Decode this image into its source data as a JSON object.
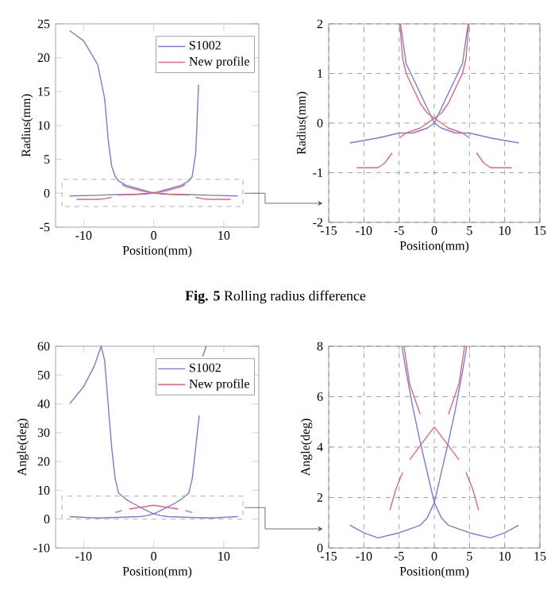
{
  "chart_data": [
    {
      "type": "line",
      "xlabel": "Position(mm)",
      "ylabel": "Radius(mm)",
      "xlim": [
        -14,
        15
      ],
      "ylim": [
        -5,
        25
      ],
      "xticks": [
        -10,
        0,
        10
      ],
      "yticks": [
        -5,
        0,
        5,
        10,
        15,
        20,
        25
      ],
      "legend": "top right",
      "annotations": [
        "**Fig. 5** Rolling radius difference"
      ],
      "series": [
        {
          "name": "S1002",
          "color": "#7b7bd6",
          "x": [
            -12,
            -10,
            -8,
            -7,
            -6.5,
            -6,
            -5.5,
            -5,
            -4,
            -3,
            -2,
            -1,
            0,
            1,
            3,
            5,
            8,
            12
          ],
          "values": [
            24,
            22.5,
            19,
            14,
            8,
            4,
            2.5,
            1.8,
            1.2,
            0.9,
            0.6,
            0.3,
            0,
            -0.1,
            -0.2,
            -0.2,
            -0.3,
            -0.4
          ]
        },
        {
          "color": "#7b7bd6",
          "x": [
            -12,
            -8,
            -5,
            -3,
            -1,
            0,
            1,
            2,
            3,
            4,
            5,
            5.5,
            6,
            6.4
          ],
          "values": [
            -0.4,
            -0.3,
            -0.2,
            -0.2,
            -0.1,
            0,
            0.3,
            0.6,
            0.9,
            1.2,
            1.8,
            2.5,
            6,
            16
          ]
        },
        {
          "name": "New profile",
          "color": "#e0687a",
          "x": [
            -4.5,
            -4,
            -3,
            -2,
            -1,
            0,
            2,
            4,
            5,
            5.5,
            6,
            7,
            8,
            11
          ],
          "values": [
            1.3,
            1.0,
            0.7,
            0.4,
            0.2,
            0.1,
            -0.1,
            -0.2,
            -0.3,
            null,
            -0.6,
            -0.8,
            -0.9,
            -0.9
          ]
        },
        {
          "color": "#e0687a",
          "x": [
            -11,
            -8,
            -7,
            -6,
            -5.5,
            -5,
            -4,
            -2,
            0,
            1,
            2,
            3,
            4,
            4.5
          ],
          "values": [
            -0.9,
            -0.9,
            -0.8,
            -0.6,
            null,
            -0.3,
            -0.2,
            -0.1,
            0.1,
            0.2,
            0.4,
            0.7,
            1.0,
            1.3
          ]
        }
      ]
    },
    {
      "type": "line",
      "xlabel": "Position(mm)",
      "ylabel": "Radius(mm)",
      "xlim": [
        -15,
        15
      ],
      "ylim": [
        -2,
        2
      ],
      "xticks": [
        -15,
        -10,
        -5,
        0,
        5,
        10,
        15
      ],
      "yticks": [
        -2,
        -1,
        0,
        1,
        2
      ],
      "grid": true,
      "series": [
        {
          "color": "#7b7bd6",
          "x": [
            -4.8,
            -4,
            -3,
            -2,
            -1,
            0,
            1,
            3,
            5,
            8,
            12
          ],
          "values": [
            2,
            1.2,
            0.9,
            0.6,
            0.3,
            0,
            -0.1,
            -0.2,
            -0.2,
            -0.3,
            -0.4
          ]
        },
        {
          "color": "#7b7bd6",
          "x": [
            -12,
            -8,
            -5,
            -3,
            -1,
            0,
            1,
            2,
            3,
            4,
            4.8
          ],
          "values": [
            -0.4,
            -0.3,
            -0.2,
            -0.2,
            -0.1,
            0,
            0.3,
            0.6,
            0.9,
            1.2,
            2
          ]
        },
        {
          "color": "#e0687a",
          "x": [
            -4.9,
            -4.5,
            -4,
            -3,
            -2,
            -1,
            0,
            2,
            4,
            5,
            5.5,
            6,
            7,
            8,
            11
          ],
          "values": [
            2,
            1.3,
            1.0,
            0.7,
            0.4,
            0.2,
            0.1,
            -0.1,
            -0.2,
            -0.3,
            null,
            -0.6,
            -0.8,
            -0.9,
            -0.9
          ]
        },
        {
          "color": "#e0687a",
          "x": [
            -11,
            -8,
            -7,
            -6,
            -5.5,
            -5,
            -4,
            -2,
            0,
            1,
            2,
            3,
            4,
            4.5,
            4.9
          ],
          "values": [
            -0.9,
            -0.9,
            -0.8,
            -0.6,
            null,
            -0.3,
            -0.2,
            -0.1,
            0.1,
            0.2,
            0.4,
            0.7,
            1.0,
            1.3,
            2
          ]
        }
      ]
    },
    {
      "type": "line",
      "xlabel": "Position(mm)",
      "ylabel": "Angle(deg)",
      "xlim": [
        -14,
        15
      ],
      "ylim": [
        -10,
        60
      ],
      "xticks": [
        -10,
        0,
        10
      ],
      "yticks": [
        -10,
        0,
        10,
        20,
        30,
        40,
        50,
        60
      ],
      "legend": "top right",
      "series": [
        {
          "name": "S1002",
          "color": "#7b7bd6",
          "x": [
            -12,
            -10,
            -8.5,
            -7.5,
            -7,
            -6.5,
            -6,
            -5.5,
            -5,
            -4,
            -3,
            -2,
            -1,
            0,
            1,
            2,
            3,
            5,
            8,
            10,
            12
          ],
          "values": [
            40,
            46,
            53,
            60,
            55,
            40,
            25,
            14,
            9,
            7,
            5.5,
            4.2,
            3,
            1.8,
            1.2,
            0.9,
            0.8,
            0.6,
            0.4,
            0.6,
            0.9
          ]
        },
        {
          "color": "#7b7bd6",
          "x": [
            -12,
            -10,
            -8,
            -5,
            -3,
            -2,
            -1,
            0,
            1,
            2,
            3,
            4,
            5,
            5.5,
            6,
            6.5,
            6.8,
            7,
            7.5
          ],
          "values": [
            0.9,
            0.6,
            0.4,
            0.6,
            0.8,
            0.9,
            1.2,
            1.8,
            3,
            4.2,
            5.5,
            7,
            9,
            14,
            25,
            36,
            null,
            56.5,
            60
          ]
        },
        {
          "name": "New profile",
          "color": "#e0687a",
          "x": [
            -5.5,
            -4.5,
            -4,
            -3.5,
            0,
            3.5,
            4,
            4.5,
            5.5
          ],
          "values": [
            2.3,
            3,
            null,
            3.5,
            4.8,
            3.5,
            null,
            3,
            2.3
          ]
        }
      ]
    },
    {
      "type": "line",
      "xlabel": "Position(mm)",
      "ylabel": "Angle(deg)",
      "xlim": [
        -15,
        15
      ],
      "ylim": [
        0,
        8
      ],
      "xticks": [
        -15,
        -10,
        -5,
        0,
        5,
        10,
        15
      ],
      "yticks": [
        0,
        2,
        4,
        6,
        8
      ],
      "grid": true,
      "series": [
        {
          "color": "#7b7bd6",
          "x": [
            -4.6,
            -4,
            -3,
            -2,
            -1,
            0,
            1,
            2,
            3,
            5,
            8,
            10,
            12
          ],
          "values": [
            8,
            7,
            5.5,
            4.2,
            3,
            1.8,
            1.2,
            0.9,
            0.8,
            0.6,
            0.4,
            0.6,
            0.9
          ]
        },
        {
          "color": "#7b7bd6",
          "x": [
            -12,
            -10,
            -8,
            -5,
            -3,
            -2,
            -1,
            0,
            1,
            2,
            3,
            4,
            4.6
          ],
          "values": [
            0.9,
            0.6,
            0.4,
            0.6,
            0.8,
            0.9,
            1.2,
            1.8,
            3,
            4.2,
            5.5,
            7,
            8
          ]
        },
        {
          "color": "#e0687a",
          "x": [
            -4.3,
            -3.5,
            -2,
            -1,
            0,
            3.5,
            4,
            4.5,
            5.5,
            6.3
          ],
          "values": [
            8,
            6.5,
            5.3,
            null,
            4.8,
            3.5,
            null,
            3,
            2.3,
            1.5
          ]
        },
        {
          "color": "#e0687a",
          "x": [
            -6.3,
            -5.5,
            -4.5,
            -4,
            -3.5,
            0,
            1,
            2,
            3.5,
            4.3
          ],
          "values": [
            1.5,
            2.3,
            3,
            null,
            3.5,
            4.8,
            null,
            5.3,
            6.5,
            8
          ]
        }
      ]
    }
  ]
}
